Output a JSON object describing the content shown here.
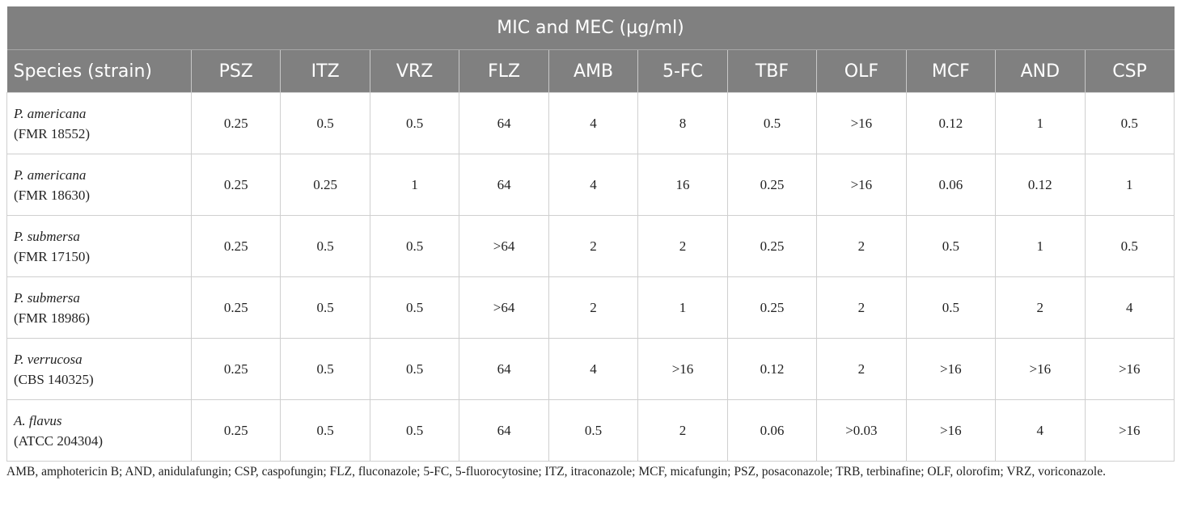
{
  "table": {
    "title": "MIC and MEC (µg/ml)",
    "columns": [
      "Species (strain)",
      "PSZ",
      "ITZ",
      "VRZ",
      "FLZ",
      "AMB",
      "5-FC",
      "TBF",
      "OLF",
      "MCF",
      "AND",
      "CSP"
    ],
    "rows": [
      {
        "species": "P. americana",
        "strain": "(FMR 18552)",
        "values": [
          "0.25",
          "0.5",
          "0.5",
          "64",
          "4",
          "8",
          "0.5",
          ">16",
          "0.12",
          "1",
          "0.5"
        ]
      },
      {
        "species": "P. americana",
        "strain": "(FMR 18630)",
        "values": [
          "0.25",
          "0.25",
          "1",
          "64",
          "4",
          "16",
          "0.25",
          ">16",
          "0.06",
          "0.12",
          "1"
        ]
      },
      {
        "species": "P. submersa",
        "strain": "(FMR 17150)",
        "values": [
          "0.25",
          "0.5",
          "0.5",
          ">64",
          "2",
          "2",
          "0.25",
          "2",
          "0.5",
          "1",
          "0.5"
        ]
      },
      {
        "species": "P. submersa",
        "strain": "(FMR 18986)",
        "values": [
          "0.25",
          "0.5",
          "0.5",
          ">64",
          "2",
          "1",
          "0.25",
          "2",
          "0.5",
          "2",
          "4"
        ]
      },
      {
        "species": "P. verrucosa",
        "strain": "(CBS 140325)",
        "values": [
          "0.25",
          "0.5",
          "0.5",
          "64",
          "4",
          ">16",
          "0.12",
          "2",
          ">16",
          ">16",
          ">16"
        ]
      },
      {
        "species": "A. flavus",
        "strain": "(ATCC 204304)",
        "values": [
          "0.25",
          "0.5",
          "0.5",
          "64",
          "0.5",
          "2",
          "0.06",
          ">0.03",
          ">16",
          "4",
          ">16"
        ]
      }
    ],
    "footnote": "AMB, amphotericin B; AND, anidulafungin; CSP, caspofungin; FLZ, fluconazole; 5-FC, 5-fluorocytosine; ITZ, itraconazole; MCF, micafungin; PSZ, posaconazole; TRB, terbinafine; OLF, olorofim; VRZ, voriconazole."
  }
}
